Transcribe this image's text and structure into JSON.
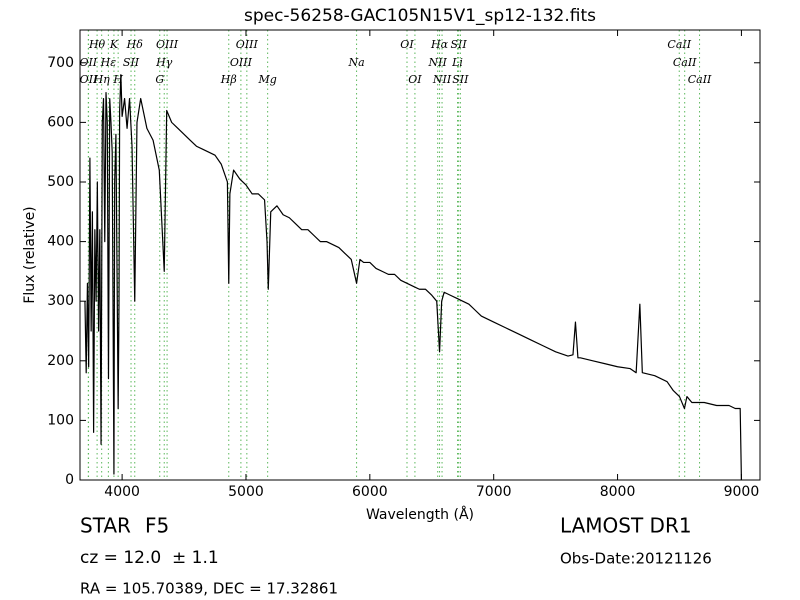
{
  "chart_data": {
    "type": "line",
    "title": "spec-56258-GAC105N15V1_sp12-132.fits",
    "x_label": "Wavelength (Å)",
    "y_label": "Flux (relative)",
    "xlim": [
      3660,
      9150
    ],
    "ylim": [
      0,
      755
    ],
    "xticks": [
      4000,
      5000,
      6000,
      7000,
      8000,
      9000
    ],
    "yticks": [
      0,
      100,
      200,
      300,
      400,
      500,
      600,
      700
    ],
    "color": "#000000",
    "line_marker_color": "#5cb85c",
    "x": [
      3700,
      3710,
      3720,
      3730,
      3740,
      3750,
      3760,
      3770,
      3780,
      3790,
      3800,
      3810,
      3820,
      3830,
      3840,
      3850,
      3860,
      3870,
      3880,
      3890,
      3900,
      3910,
      3920,
      3934,
      3940,
      3950,
      3968,
      3975,
      3980,
      3990,
      4000,
      4020,
      4040,
      4060,
      4080,
      4102,
      4120,
      4150,
      4200,
      4250,
      4300,
      4340,
      4360,
      4400,
      4450,
      4500,
      4550,
      4600,
      4650,
      4700,
      4750,
      4800,
      4850,
      4861,
      4870,
      4900,
      4950,
      5000,
      5050,
      5100,
      5150,
      5170,
      5180,
      5200,
      5250,
      5300,
      5350,
      5400,
      5450,
      5500,
      5550,
      5600,
      5650,
      5700,
      5750,
      5800,
      5850,
      5893,
      5920,
      5950,
      6000,
      6050,
      6100,
      6150,
      6200,
      6250,
      6300,
      6350,
      6400,
      6450,
      6500,
      6540,
      6563,
      6580,
      6600,
      6650,
      6700,
      6750,
      6800,
      6850,
      6900,
      6950,
      7000,
      7100,
      7200,
      7300,
      7400,
      7500,
      7600,
      7640,
      7660,
      7680,
      7700,
      7800,
      7900,
      8000,
      8100,
      8150,
      8180,
      8200,
      8300,
      8400,
      8450,
      8500,
      8540,
      8560,
      8600,
      8660,
      8700,
      8800,
      8900,
      8950,
      8990,
      9000
    ],
    "values": [
      300,
      180,
      330,
      190,
      540,
      250,
      450,
      80,
      420,
      300,
      500,
      250,
      420,
      60,
      600,
      640,
      400,
      650,
      600,
      170,
      640,
      600,
      550,
      10,
      500,
      580,
      120,
      300,
      620,
      680,
      610,
      640,
      590,
      640,
      560,
      300,
      600,
      640,
      590,
      570,
      520,
      350,
      620,
      600,
      590,
      580,
      570,
      560,
      555,
      550,
      545,
      530,
      500,
      330,
      480,
      520,
      505,
      495,
      480,
      480,
      470,
      400,
      320,
      450,
      460,
      445,
      440,
      430,
      420,
      420,
      410,
      400,
      400,
      395,
      390,
      380,
      370,
      330,
      370,
      365,
      365,
      355,
      350,
      345,
      345,
      335,
      330,
      325,
      320,
      320,
      310,
      300,
      215,
      300,
      315,
      310,
      305,
      300,
      295,
      285,
      275,
      270,
      265,
      255,
      245,
      235,
      225,
      215,
      208,
      210,
      265,
      205,
      205,
      200,
      195,
      190,
      187,
      180,
      295,
      180,
      175,
      165,
      150,
      140,
      120,
      140,
      130,
      130,
      130,
      125,
      125,
      120,
      120,
      0
    ],
    "spectral_lines": [
      [
        {
          "label": "Hθ",
          "x": 3798
        },
        {
          "label": "K",
          "x": 3934
        },
        {
          "label": "Hδ",
          "x": 4102
        },
        {
          "label": "OIII",
          "x": 4363
        },
        {
          "label": "OIII",
          "x": 5007
        },
        {
          "label": "OI",
          "x": 6300
        },
        {
          "label": "Hα",
          "x": 6563
        },
        {
          "label": "SII",
          "x": 6717
        },
        {
          "label": "CaII",
          "x": 8498
        }
      ],
      [
        {
          "label": "OII",
          "x": 3727
        },
        {
          "label": "Hε",
          "x": 3889
        },
        {
          "label": "SII",
          "x": 4072
        },
        {
          "label": "Hγ",
          "x": 4340
        },
        {
          "label": "OIII",
          "x": 4959
        },
        {
          "label": "Na",
          "x": 5893
        },
        {
          "label": "NII",
          "x": 6548
        },
        {
          "label": "Li",
          "x": 6708
        },
        {
          "label": "CaII",
          "x": 8542
        }
      ],
      [
        {
          "label": "OII",
          "x": 3729
        },
        {
          "label": "Hη",
          "x": 3835
        },
        {
          "label": "H",
          "x": 3968
        },
        {
          "label": "G",
          "x": 4304
        },
        {
          "label": "Hβ",
          "x": 4861
        },
        {
          "label": "Mg",
          "x": 5175
        },
        {
          "label": "OI",
          "x": 6364
        },
        {
          "label": "NII",
          "x": 6583
        },
        {
          "label": "SII",
          "x": 6731
        },
        {
          "label": "CaII",
          "x": 8662
        }
      ]
    ],
    "object_class": "STAR",
    "subclass": "F5",
    "redshift": "cz = 12.0  ± 1.1",
    "coordinates": "RA = 105.70389, DEC = 17.32861",
    "survey": "LAMOST DR1",
    "obs_date": "Obs-Date:20121126"
  }
}
